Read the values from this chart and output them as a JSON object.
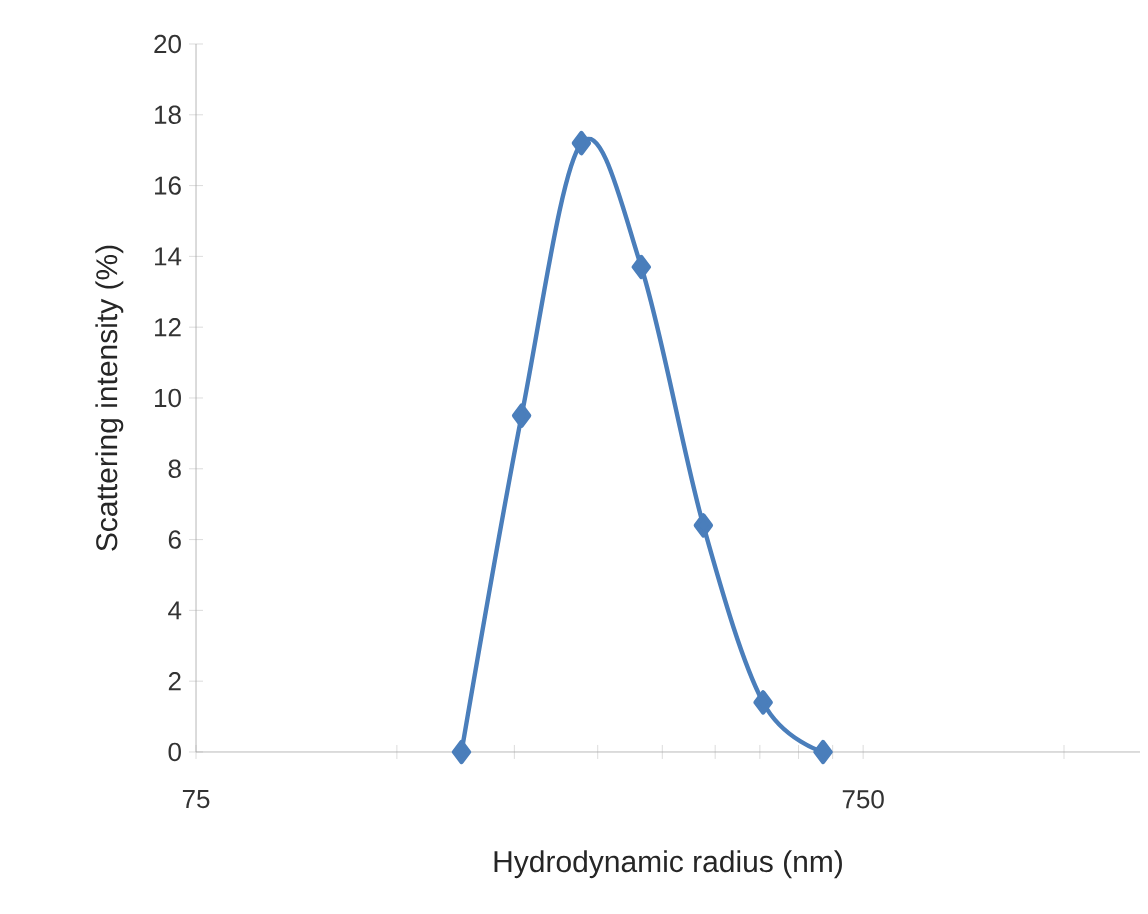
{
  "chart_data": {
    "type": "line",
    "xlabel": "Hydrodynamic radius (nm)",
    "ylabel": "Scattering intensity (%)",
    "log": "x",
    "marker": "diamond",
    "line_style": "solid",
    "grid": false,
    "xlim": [
      75,
      1950
    ],
    "ylim": [
      0,
      20
    ],
    "xticks": [
      75,
      {
        "value": 150,
        "label": null
      },
      {
        "value": 225,
        "label": null
      },
      {
        "value": 300,
        "label": null
      },
      {
        "value": 375,
        "label": null
      },
      {
        "value": 450,
        "label": null
      },
      {
        "value": 525,
        "label": null
      },
      {
        "value": 600,
        "label": null
      },
      {
        "value": 675,
        "label": null
      },
      750,
      {
        "value": 1500,
        "label": null
      }
    ],
    "yticks": [
      0,
      2,
      4,
      6,
      8,
      10,
      12,
      14,
      16,
      18,
      20
    ],
    "x": [
      187.5,
      230.7,
      283.6,
      348.7,
      432,
      531,
      653
    ],
    "series": [
      {
        "color": "#4a7ebb",
        "values": [
          0,
          9.5,
          17.2,
          13.7,
          6.4,
          1.4,
          0
        ]
      }
    ]
  }
}
